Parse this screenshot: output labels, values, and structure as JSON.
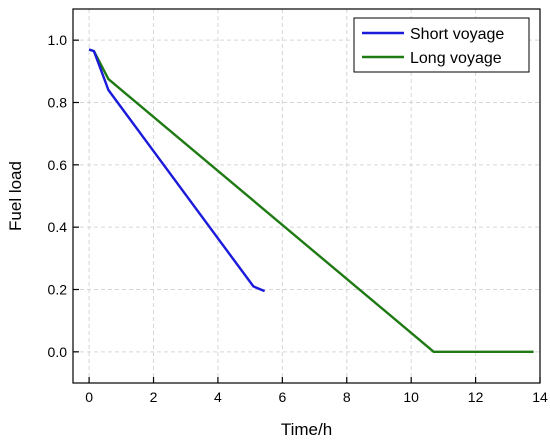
{
  "chart_data": {
    "type": "line",
    "xlabel": "Time/h",
    "ylabel": "Fuel load",
    "xlim": [
      -0.5,
      14
    ],
    "ylim": [
      -0.1,
      1.1
    ],
    "xticks": [
      0,
      2,
      4,
      6,
      8,
      10,
      12,
      14
    ],
    "yticks": [
      0.0,
      0.2,
      0.4,
      0.6,
      0.8,
      1.0
    ],
    "xtick_labels": [
      "0",
      "2",
      "4",
      "6",
      "8",
      "10",
      "12",
      "14"
    ],
    "ytick_labels": [
      "0.0",
      "0.2",
      "0.4",
      "0.6",
      "0.8",
      "1.0"
    ],
    "grid": true,
    "legend_position": "top-right",
    "series": [
      {
        "name": "Short voyage",
        "color": "#1a1adb",
        "x": [
          0,
          0.15,
          0.6,
          5.1,
          5.45
        ],
        "y": [
          0.97,
          0.965,
          0.84,
          0.21,
          0.195
        ]
      },
      {
        "name": "Long voyage",
        "color": "#1f7a14",
        "x": [
          0,
          0.15,
          0.6,
          10.7,
          13.8
        ],
        "y": [
          0.97,
          0.965,
          0.875,
          0.0,
          0.0
        ]
      }
    ]
  }
}
